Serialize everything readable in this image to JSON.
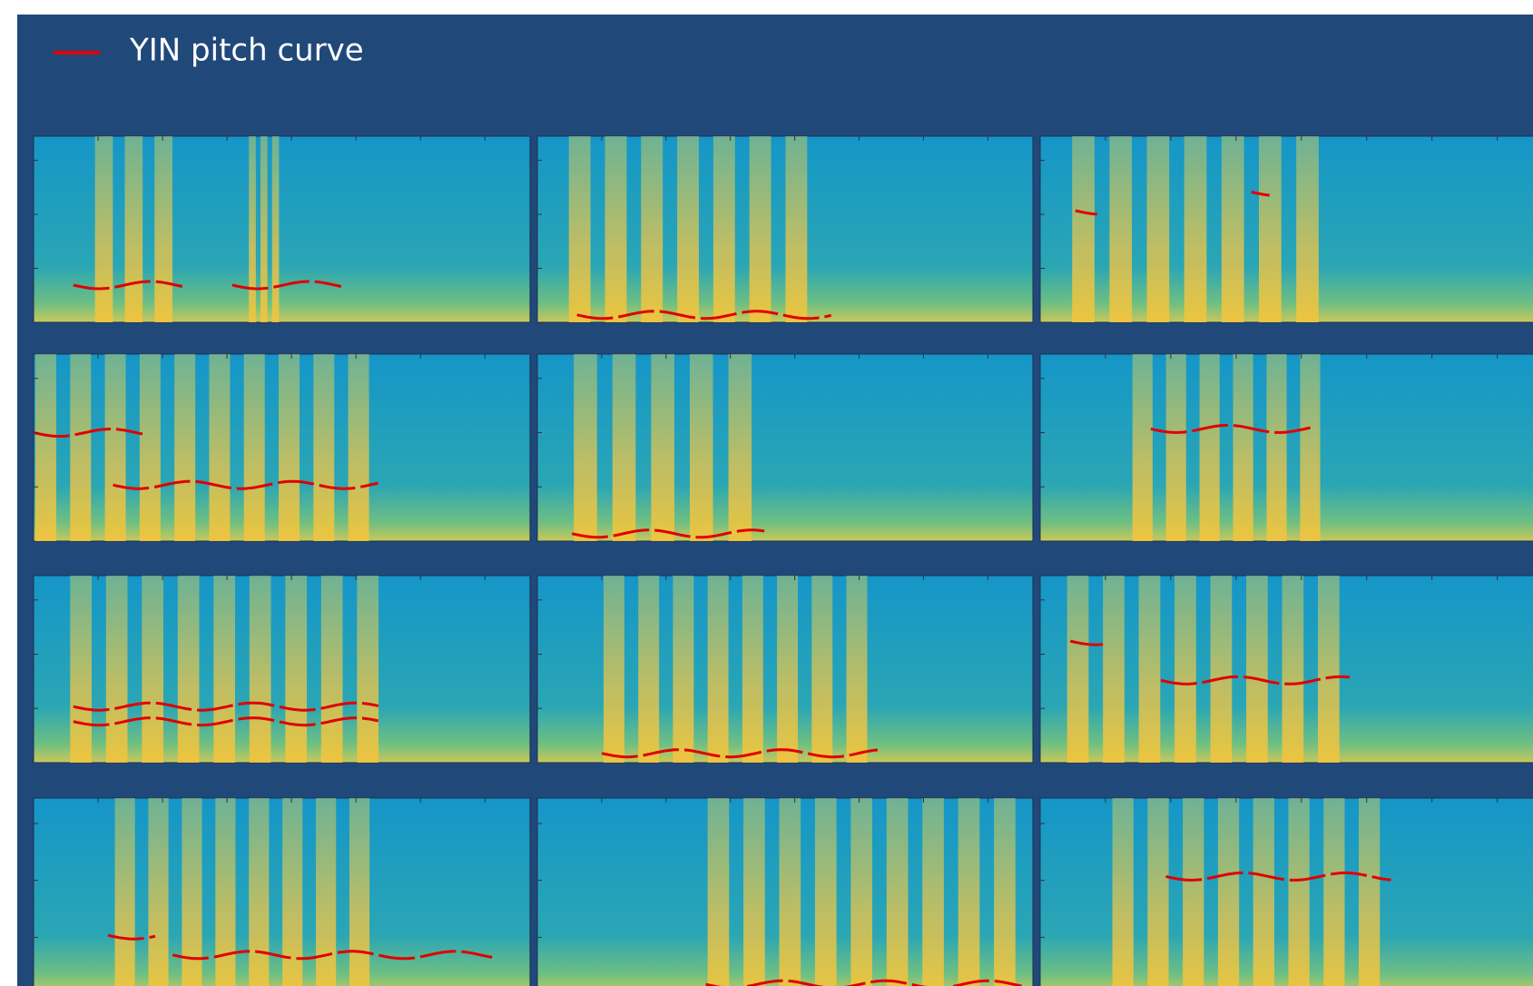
{
  "legend": {
    "label": "YIN pitch curve",
    "color": "#e00000"
  }
}
